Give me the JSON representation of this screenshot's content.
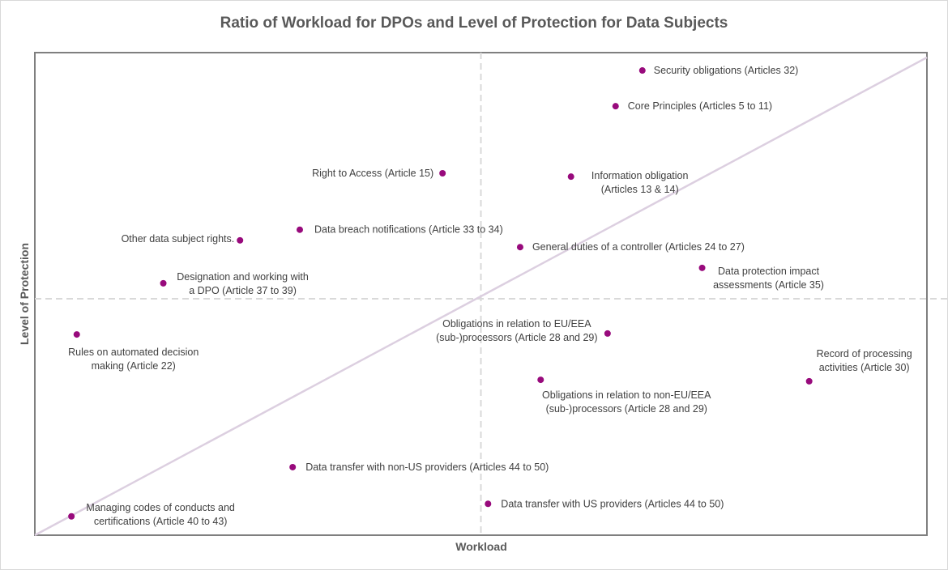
{
  "chart_data": {
    "type": "scatter",
    "title": "Ratio of Workload for DPOs and Level of Protection for Data Subjects",
    "xlabel": "Workload",
    "ylabel": "Level of Protection",
    "xlim": [
      0,
      100
    ],
    "ylim": [
      0,
      100
    ],
    "grid": false,
    "quadrant_dividers": {
      "x": 50,
      "y": 49
    },
    "diagonal": {
      "from": [
        0,
        0
      ],
      "to": [
        100,
        99
      ]
    },
    "colors": {
      "points": "#980a7c",
      "diagonal": "#dccfe0",
      "dividers": "#d9d9d9",
      "text": "#404040",
      "frame": "#7f7f7f"
    },
    "points": [
      {
        "label": [
          "Security obligations (Articles 32)"
        ],
        "x": 68.1,
        "y": 96.3
      },
      {
        "label": [
          "Core Principles (Articles 5 to 11)"
        ],
        "x": 65.1,
        "y": 88.9
      },
      {
        "label": [
          "Right to Access (Article 15)"
        ],
        "x": 45.7,
        "y": 75.0
      },
      {
        "label": [
          "Information obligation",
          "(Articles 13 & 14)"
        ],
        "x": 60.1,
        "y": 74.3
      },
      {
        "label": [
          "Data breach notifications (Article 33 to 34)"
        ],
        "x": 29.7,
        "y": 63.3
      },
      {
        "label": [
          "Other data subject rights."
        ],
        "x": 23.0,
        "y": 61.1
      },
      {
        "label": [
          "General duties of a controller (Articles 24 to 27)"
        ],
        "x": 54.4,
        "y": 59.7
      },
      {
        "label": [
          "Data protection impact",
          "assessments (Article 35)"
        ],
        "x": 74.8,
        "y": 55.4
      },
      {
        "label": [
          "Designation and working with",
          "a DPO (Article 37 to 39)"
        ],
        "x": 14.4,
        "y": 52.2
      },
      {
        "label": [
          "Rules on automated decision",
          "making (Article 22)"
        ],
        "x": 4.7,
        "y": 41.6
      },
      {
        "label": [
          "Obligations in relation to EU/EEA",
          "(sub-)processors (Article 28 and 29)"
        ],
        "x": 64.2,
        "y": 41.8
      },
      {
        "label": [
          "Obligations in relation to non-EU/EEA",
          "(sub-)processors (Article 28 and 29)"
        ],
        "x": 56.7,
        "y": 32.2
      },
      {
        "label": [
          "Record of processing",
          "activities (Article 30)"
        ],
        "x": 86.8,
        "y": 31.9
      },
      {
        "label": [
          "Data transfer with non-US providers (Articles 44 to 50)"
        ],
        "x": 28.9,
        "y": 14.1
      },
      {
        "label": [
          "Data transfer with US providers (Articles 44 to 50)"
        ],
        "x": 50.8,
        "y": 6.5
      },
      {
        "label": [
          "Managing codes of conducts and",
          "certifications (Article 40 to 43)"
        ],
        "x": 4.1,
        "y": 3.9
      }
    ]
  }
}
